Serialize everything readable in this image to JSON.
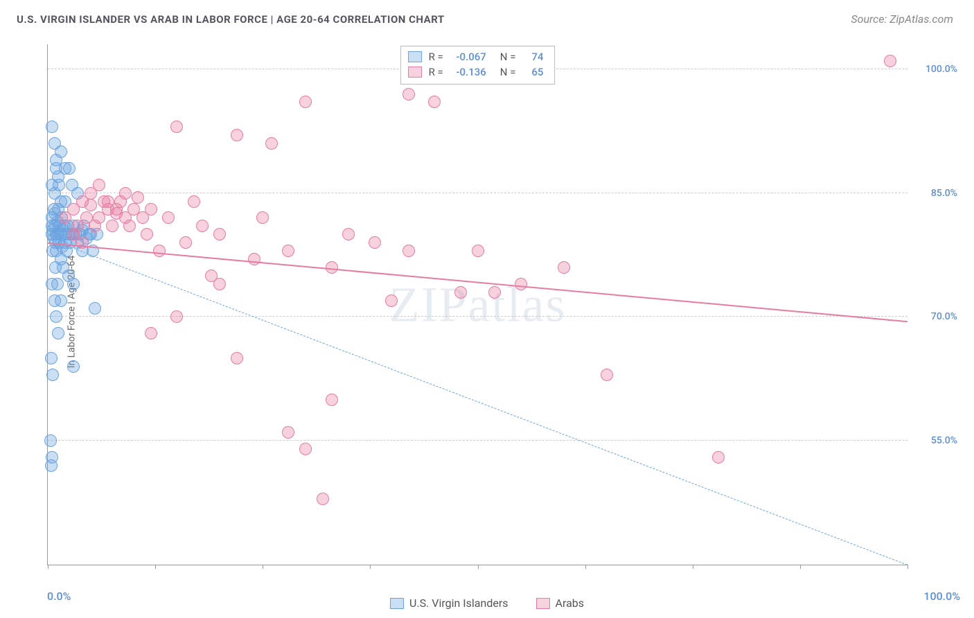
{
  "title": "U.S. VIRGIN ISLANDER VS ARAB IN LABOR FORCE | AGE 20-64 CORRELATION CHART",
  "source_prefix": "Source: ",
  "source_name": "ZipAtlas.com",
  "ylabel": "In Labor Force | Age 20-64",
  "watermark": "ZIPatlas",
  "chart": {
    "type": "scatter",
    "xlim": [
      0,
      100
    ],
    "ylim": [
      40,
      103
    ],
    "yticks": [
      55.0,
      70.0,
      85.0,
      100.0
    ],
    "ytick_labels": [
      "55.0%",
      "70.0%",
      "85.0%",
      "100.0%"
    ],
    "xticks": [
      0,
      12.5,
      25,
      37.5,
      50,
      62.5,
      75,
      87.5,
      100
    ],
    "xlabel_min": "0.0%",
    "xlabel_max": "100.0%",
    "background_color": "#ffffff",
    "grid_color": "#cccccc",
    "marker_radius": 9,
    "marker_opacity": 0.45,
    "title_fontsize": 15,
    "title_color": "#555560",
    "label_fontsize": 14,
    "tick_color": "#5b8fd6",
    "series": [
      {
        "name": "U.S. Virgin Islanders",
        "color": "#6aa3e0",
        "fill": "rgba(106,163,224,0.35)",
        "R": "-0.067",
        "N": "74",
        "trend": {
          "y_at_x0": 79.5,
          "y_at_x100": 40.0,
          "style": "dashed"
        },
        "points": [
          [
            0.5,
            80
          ],
          [
            0.5,
            81
          ],
          [
            0.5,
            82
          ],
          [
            0.6,
            80.5
          ],
          [
            0.7,
            83
          ],
          [
            0.7,
            79.5
          ],
          [
            0.8,
            81
          ],
          [
            0.8,
            82.5
          ],
          [
            0.9,
            79
          ],
          [
            1.0,
            80
          ],
          [
            1.0,
            78
          ],
          [
            1.1,
            81.5
          ],
          [
            1.2,
            80
          ],
          [
            1.2,
            83
          ],
          [
            1.3,
            79
          ],
          [
            1.4,
            81
          ],
          [
            1.5,
            77
          ],
          [
            1.5,
            80
          ],
          [
            1.6,
            82
          ],
          [
            1.7,
            78.5
          ],
          [
            1.8,
            80.5
          ],
          [
            1.8,
            76
          ],
          [
            1.9,
            81
          ],
          [
            2.0,
            79
          ],
          [
            2.0,
            84
          ],
          [
            2.1,
            80
          ],
          [
            2.2,
            78
          ],
          [
            2.3,
            81
          ],
          [
            2.4,
            75
          ],
          [
            2.5,
            80
          ],
          [
            2.5,
            88
          ],
          [
            2.6,
            79
          ],
          [
            2.8,
            80
          ],
          [
            2.8,
            86
          ],
          [
            3.0,
            81
          ],
          [
            3.0,
            74
          ],
          [
            3.2,
            80
          ],
          [
            3.5,
            79
          ],
          [
            3.5,
            85
          ],
          [
            3.7,
            80
          ],
          [
            4.0,
            78
          ],
          [
            4.0,
            80.5
          ],
          [
            4.2,
            81
          ],
          [
            4.5,
            79.5
          ],
          [
            4.8,
            80
          ],
          [
            5.0,
            80
          ],
          [
            5.2,
            78
          ],
          [
            5.5,
            71
          ],
          [
            5.7,
            80
          ],
          [
            0.5,
            93
          ],
          [
            0.8,
            91
          ],
          [
            1.0,
            89
          ],
          [
            1.2,
            87
          ],
          [
            1.5,
            90
          ],
          [
            0.5,
            74
          ],
          [
            0.8,
            72
          ],
          [
            1.0,
            70
          ],
          [
            1.2,
            68
          ],
          [
            0.4,
            65
          ],
          [
            0.6,
            63
          ],
          [
            0.3,
            55
          ],
          [
            0.5,
            53
          ],
          [
            1.0,
            88
          ],
          [
            1.3,
            86
          ],
          [
            1.5,
            84
          ],
          [
            0.4,
            52
          ],
          [
            3.0,
            64
          ],
          [
            2.0,
            88
          ],
          [
            0.5,
            86
          ],
          [
            0.8,
            85
          ],
          [
            1.5,
            72
          ],
          [
            0.6,
            78
          ],
          [
            0.9,
            76
          ],
          [
            1.1,
            74
          ]
        ]
      },
      {
        "name": "Arabs",
        "color": "#e77ba0",
        "fill": "rgba(231,123,160,0.35)",
        "R": "-0.136",
        "N": "65",
        "trend": {
          "y_at_x0": 79.0,
          "y_at_x100": 69.5,
          "style": "solid"
        },
        "points": [
          [
            2,
            82
          ],
          [
            3,
            83
          ],
          [
            3.5,
            81
          ],
          [
            4,
            84
          ],
          [
            4.5,
            82
          ],
          [
            5,
            83.5
          ],
          [
            5.5,
            81
          ],
          [
            6,
            82
          ],
          [
            6.5,
            84
          ],
          [
            7,
            83
          ],
          [
            7.5,
            81
          ],
          [
            8,
            82.5
          ],
          [
            8.5,
            84
          ],
          [
            9,
            82
          ],
          [
            9.5,
            81
          ],
          [
            10,
            83
          ],
          [
            10.5,
            84.5
          ],
          [
            11,
            82
          ],
          [
            11.5,
            80
          ],
          [
            12,
            83
          ],
          [
            13,
            78
          ],
          [
            14,
            82
          ],
          [
            15,
            93
          ],
          [
            16,
            79
          ],
          [
            18,
            81
          ],
          [
            20,
            80
          ],
          [
            20,
            74
          ],
          [
            22,
            92
          ],
          [
            22,
            65
          ],
          [
            24,
            77
          ],
          [
            25,
            82
          ],
          [
            26,
            91
          ],
          [
            28,
            78
          ],
          [
            28,
            56
          ],
          [
            30,
            96
          ],
          [
            30,
            54
          ],
          [
            32,
            48
          ],
          [
            33,
            60
          ],
          [
            33,
            76
          ],
          [
            35,
            80
          ],
          [
            38,
            79
          ],
          [
            40,
            72
          ],
          [
            42,
            97
          ],
          [
            42,
            78
          ],
          [
            45,
            96
          ],
          [
            48,
            73
          ],
          [
            50,
            78
          ],
          [
            52,
            73
          ],
          [
            55,
            74
          ],
          [
            57,
            99
          ],
          [
            60,
            76
          ],
          [
            65,
            63
          ],
          [
            78,
            53
          ],
          [
            98,
            101
          ],
          [
            5,
            85
          ],
          [
            6,
            86
          ],
          [
            7,
            84
          ],
          [
            8,
            83
          ],
          [
            9,
            85
          ],
          [
            3,
            80
          ],
          [
            4,
            79
          ],
          [
            12,
            68
          ],
          [
            15,
            70
          ],
          [
            17,
            84
          ],
          [
            19,
            75
          ]
        ]
      }
    ]
  },
  "bottom_legend": [
    {
      "label": "U.S. Virgin Islanders",
      "series": 0
    },
    {
      "label": "Arabs",
      "series": 1
    }
  ]
}
